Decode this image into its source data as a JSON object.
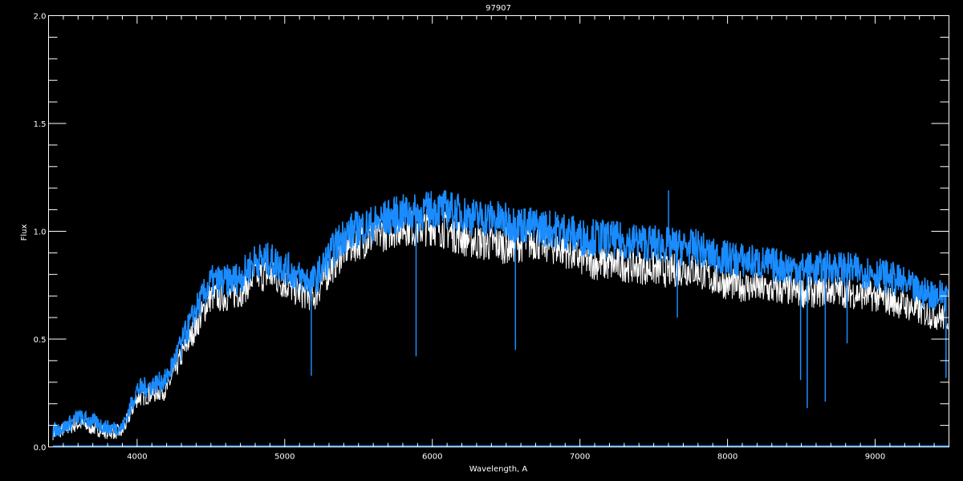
{
  "chart_data": {
    "type": "line",
    "title": "97907",
    "xlabel": "Wavelength, A",
    "ylabel": "Flux",
    "xlim": [
      3400,
      9500
    ],
    "ylim": [
      0.0,
      2.0
    ],
    "x_ticks": [
      4000,
      5000,
      6000,
      7000,
      8000,
      9000
    ],
    "x_tick_labels": [
      "4000",
      "5000",
      "6000",
      "7000",
      "8000",
      "9000"
    ],
    "y_ticks": [
      0.0,
      0.5,
      1.0,
      1.5,
      2.0
    ],
    "y_tick_labels": [
      "0.0",
      "0.5",
      "1.0",
      "1.5",
      "2.0"
    ],
    "grid": false,
    "background": "#000000",
    "x": [
      3400,
      3500,
      3600,
      3700,
      3800,
      3900,
      4000,
      4100,
      4200,
      4300,
      4400,
      4500,
      4600,
      4700,
      4800,
      4900,
      5000,
      5100,
      5200,
      5300,
      5400,
      5500,
      5600,
      5700,
      5800,
      5900,
      6000,
      6100,
      6200,
      6300,
      6400,
      6500,
      6600,
      6700,
      6800,
      6900,
      7000,
      7100,
      7200,
      7300,
      7400,
      7500,
      7600,
      7700,
      7800,
      7900,
      8000,
      8100,
      8200,
      8300,
      8400,
      8500,
      8600,
      8700,
      8800,
      8900,
      9000,
      9100,
      9200,
      9300,
      9400,
      9500
    ],
    "series": [
      {
        "color": "#ffffff",
        "values": [
          0.07,
          0.09,
          0.12,
          0.1,
          0.08,
          0.08,
          0.24,
          0.26,
          0.28,
          0.44,
          0.58,
          0.72,
          0.72,
          0.74,
          0.82,
          0.82,
          0.78,
          0.74,
          0.72,
          0.84,
          0.94,
          0.98,
          1.0,
          1.03,
          1.05,
          1.04,
          1.05,
          1.03,
          1.0,
          0.98,
          0.97,
          0.96,
          0.97,
          0.98,
          0.96,
          0.94,
          0.9,
          0.88,
          0.87,
          0.87,
          0.86,
          0.85,
          0.84,
          0.85,
          0.84,
          0.8,
          0.78,
          0.77,
          0.76,
          0.75,
          0.75,
          0.74,
          0.74,
          0.75,
          0.74,
          0.73,
          0.72,
          0.7,
          0.68,
          0.65,
          0.63,
          0.62
        ]
      },
      {
        "color": "#1a8cff",
        "values": [
          0.08,
          0.1,
          0.15,
          0.13,
          0.1,
          0.1,
          0.28,
          0.3,
          0.33,
          0.5,
          0.66,
          0.79,
          0.79,
          0.81,
          0.89,
          0.89,
          0.86,
          0.81,
          0.79,
          0.91,
          1.01,
          1.04,
          1.06,
          1.09,
          1.11,
          1.11,
          1.13,
          1.13,
          1.11,
          1.09,
          1.09,
          1.07,
          1.06,
          1.05,
          1.04,
          1.03,
          1.0,
          1.0,
          0.99,
          0.98,
          0.98,
          0.97,
          0.96,
          0.95,
          0.95,
          0.91,
          0.9,
          0.89,
          0.88,
          0.87,
          0.86,
          0.85,
          0.85,
          0.86,
          0.85,
          0.84,
          0.83,
          0.81,
          0.78,
          0.74,
          0.73,
          0.73
        ]
      }
    ],
    "features": [
      {
        "x": 4300,
        "y": 0.4
      },
      {
        "x": 5180,
        "y": 0.33
      },
      {
        "x": 5890,
        "y": 0.42
      },
      {
        "x": 6563,
        "y": 0.45
      },
      {
        "x": 7600,
        "y": 1.19
      },
      {
        "x": 7660,
        "y": 0.6
      },
      {
        "x": 8495,
        "y": 0.31
      },
      {
        "x": 8540,
        "y": 0.18
      },
      {
        "x": 8662,
        "y": 0.21
      },
      {
        "x": 8810,
        "y": 0.48
      },
      {
        "x": 9480,
        "y": 0.32
      }
    ]
  }
}
